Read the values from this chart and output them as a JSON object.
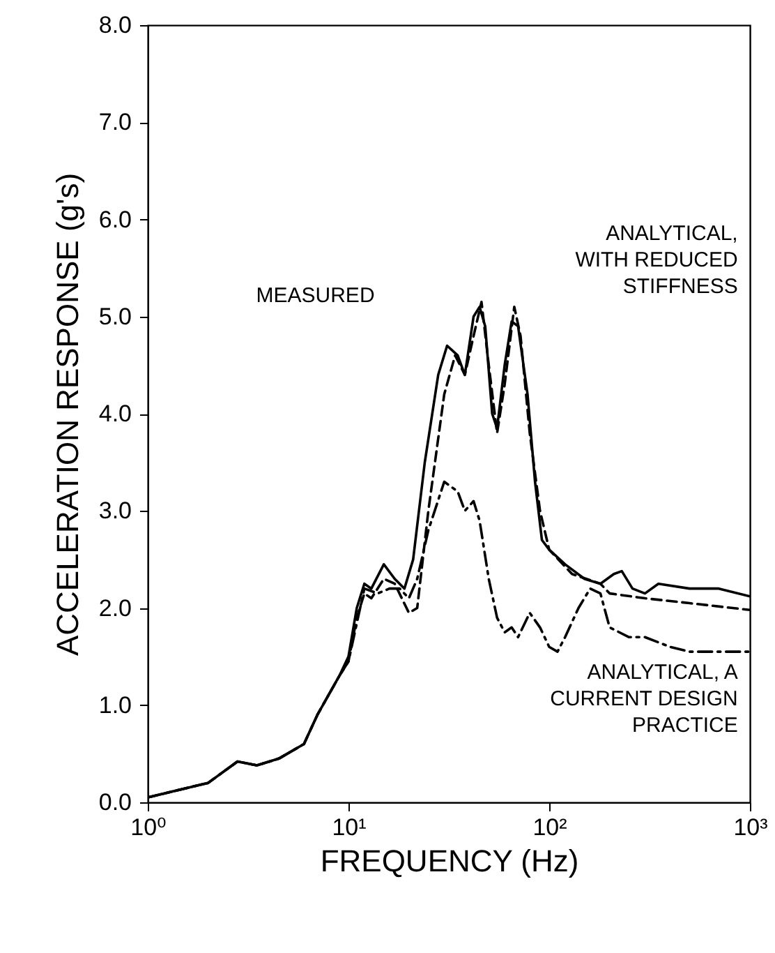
{
  "chart_data": {
    "type": "line",
    "xlabel": "FREQUENCY (Hz)",
    "ylabel": "ACCELERATION RESPONSE (g's)",
    "log": "x",
    "xlim": [
      1,
      1000
    ],
    "ylim": [
      0,
      8
    ],
    "xticks": [
      {
        "value": 1,
        "label": "10⁰"
      },
      {
        "value": 10,
        "label": "10¹"
      },
      {
        "value": 100,
        "label": "10²"
      },
      {
        "value": 1000,
        "label": "10³"
      }
    ],
    "yticks": [
      {
        "value": 0,
        "label": "0.0"
      },
      {
        "value": 1,
        "label": "1.0"
      },
      {
        "value": 2,
        "label": "2.0"
      },
      {
        "value": 3,
        "label": "3.0"
      },
      {
        "value": 4,
        "label": "4.0"
      },
      {
        "value": 5,
        "label": "5.0"
      },
      {
        "value": 6,
        "label": "6.0"
      },
      {
        "value": 7,
        "label": "7.0"
      },
      {
        "value": 8,
        "label": "8.0"
      }
    ],
    "grid": false,
    "series": [
      {
        "color": "#000000",
        "line_style": "solid",
        "x": [
          1,
          2,
          2.8,
          3.5,
          4.5,
          6,
          7,
          9,
          10,
          11,
          12,
          13,
          15,
          17,
          19,
          21,
          24,
          28,
          31,
          35,
          38,
          42,
          45,
          48,
          52,
          55,
          60,
          65,
          70,
          78,
          85,
          92,
          100,
          120,
          150,
          180,
          210,
          230,
          260,
          300,
          350,
          500,
          700,
          1000
        ],
        "values": [
          0.05,
          0.2,
          0.42,
          0.38,
          0.45,
          0.6,
          0.9,
          1.3,
          1.5,
          2.0,
          2.25,
          2.2,
          2.45,
          2.3,
          2.2,
          2.5,
          3.5,
          4.4,
          4.7,
          4.6,
          4.4,
          5.0,
          5.1,
          4.9,
          4.0,
          3.85,
          4.5,
          4.95,
          4.9,
          4.2,
          3.3,
          2.7,
          2.6,
          2.45,
          2.3,
          2.25,
          2.35,
          2.38,
          2.2,
          2.15,
          2.25,
          2.2,
          2.2,
          2.12
        ]
      },
      {
        "color": "#000000",
        "line_style": "dashed",
        "x": [
          1,
          2,
          2.8,
          3.5,
          4.5,
          6,
          7,
          9,
          10,
          11,
          12,
          13,
          15,
          17,
          20,
          22,
          25,
          30,
          34,
          38,
          42,
          46,
          50,
          55,
          60,
          67,
          72,
          80,
          90,
          100,
          130,
          180,
          200,
          300,
          500,
          1000
        ],
        "values": [
          0.05,
          0.2,
          0.42,
          0.38,
          0.45,
          0.6,
          0.9,
          1.3,
          1.45,
          1.9,
          2.15,
          2.1,
          2.3,
          2.25,
          1.95,
          2.0,
          3.0,
          4.2,
          4.6,
          4.4,
          4.8,
          5.15,
          4.5,
          3.8,
          4.3,
          5.1,
          4.8,
          3.8,
          3.0,
          2.6,
          2.35,
          2.25,
          2.15,
          2.1,
          2.05,
          1.98
        ]
      },
      {
        "color": "#000000",
        "line_style": "dotted",
        "x": [
          1,
          2,
          2.8,
          3.5,
          4.5,
          6,
          7,
          9,
          10,
          12,
          14,
          16,
          18,
          20,
          22,
          25,
          30,
          35,
          38,
          42,
          45,
          50,
          55,
          60,
          65,
          70,
          80,
          90,
          100,
          110,
          120,
          140,
          160,
          180,
          200,
          250,
          300,
          400,
          500,
          1000
        ],
        "values": [
          0.05,
          0.2,
          0.42,
          0.38,
          0.45,
          0.6,
          0.9,
          1.3,
          1.45,
          2.2,
          2.15,
          2.2,
          2.2,
          2.1,
          2.3,
          2.8,
          3.3,
          3.2,
          3.0,
          3.1,
          2.9,
          2.3,
          1.9,
          1.75,
          1.8,
          1.7,
          1.95,
          1.8,
          1.6,
          1.55,
          1.7,
          2.0,
          2.2,
          2.15,
          1.8,
          1.7,
          1.7,
          1.6,
          1.55,
          1.55
        ]
      }
    ],
    "annotations": [
      "ANALYTICAL,\nWITH REDUCED\nSTIFFNESS",
      "MEASURED",
      "ANALYTICAL, A\nCURRENT DESIGN\nPRACTICE"
    ]
  }
}
